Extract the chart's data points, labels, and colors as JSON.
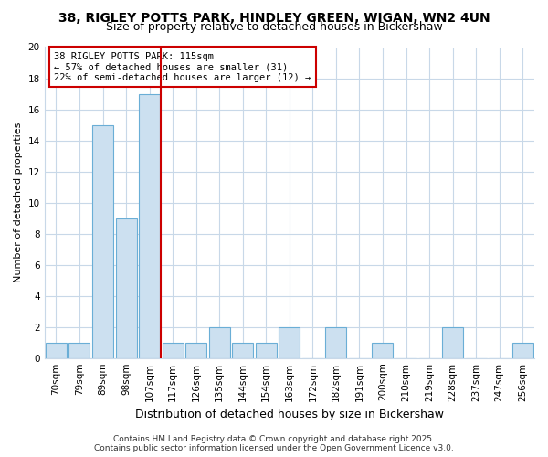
{
  "title1": "38, RIGLEY POTTS PARK, HINDLEY GREEN, WIGAN, WN2 4UN",
  "title2": "Size of property relative to detached houses in Bickershaw",
  "xlabel": "Distribution of detached houses by size in Bickershaw",
  "ylabel": "Number of detached properties",
  "categories": [
    "70sqm",
    "79sqm",
    "89sqm",
    "98sqm",
    "107sqm",
    "117sqm",
    "126sqm",
    "135sqm",
    "144sqm",
    "154sqm",
    "163sqm",
    "172sqm",
    "182sqm",
    "191sqm",
    "200sqm",
    "210sqm",
    "219sqm",
    "228sqm",
    "237sqm",
    "247sqm",
    "256sqm"
  ],
  "values": [
    1,
    1,
    15,
    9,
    17,
    1,
    1,
    2,
    1,
    1,
    2,
    0,
    2,
    0,
    1,
    0,
    0,
    2,
    0,
    0,
    1
  ],
  "bar_color": "#cce0f0",
  "bar_edge_color": "#6aaed6",
  "reference_line_x": 4.5,
  "ylim": [
    0,
    20
  ],
  "yticks": [
    0,
    2,
    4,
    6,
    8,
    10,
    12,
    14,
    16,
    18,
    20
  ],
  "annotation_lines": [
    "38 RIGLEY POTTS PARK: 115sqm",
    "← 57% of detached houses are smaller (31)",
    "22% of semi-detached houses are larger (12) →"
  ],
  "annotation_box_color": "#ffffff",
  "annotation_box_edge": "#cc0000",
  "vline_color": "#cc0000",
  "footer1": "Contains HM Land Registry data © Crown copyright and database right 2025.",
  "footer2": "Contains public sector information licensed under the Open Government Licence v3.0.",
  "bg_color": "#ffffff",
  "plot_bg_color": "#ffffff",
  "grid_color": "#c8d8e8",
  "title1_fontsize": 10,
  "title2_fontsize": 9,
  "xlabel_fontsize": 9,
  "ylabel_fontsize": 8,
  "tick_fontsize": 7.5,
  "footer_fontsize": 6.5
}
